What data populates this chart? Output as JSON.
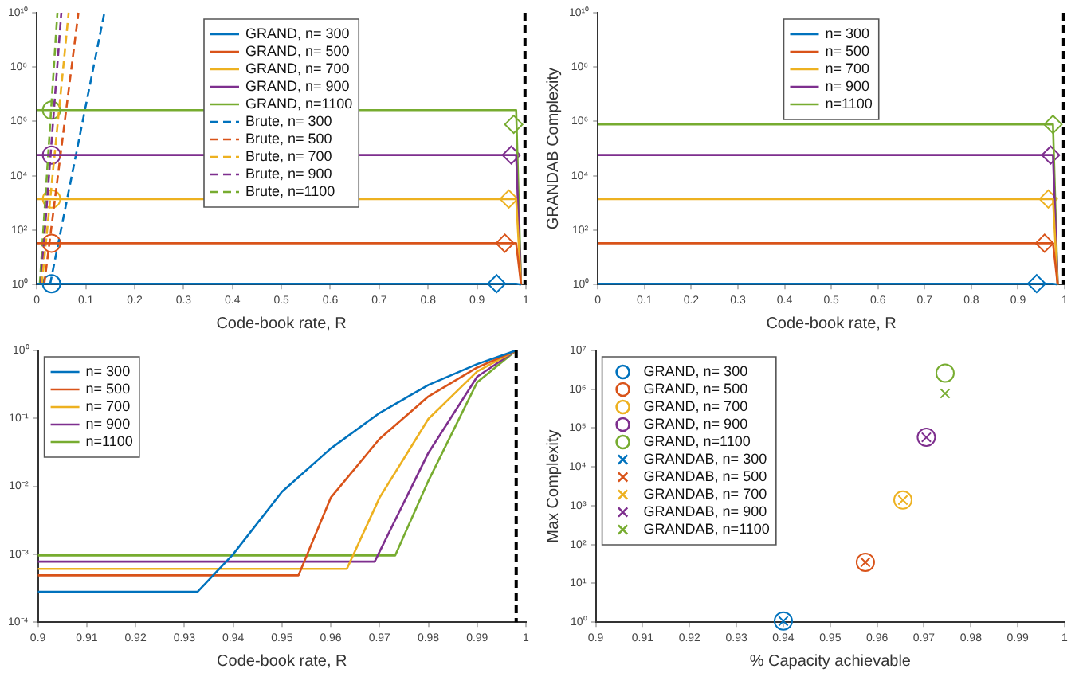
{
  "chart_data": [
    {
      "type": "line",
      "xlabel": "Code-book rate, R",
      "log": "y",
      "grid": false,
      "legend": "top",
      "xlim": [
        0,
        1
      ],
      "xticks": [
        0,
        0.1,
        0.2,
        0.3,
        0.4,
        0.5,
        0.6,
        0.7,
        0.8,
        0.9,
        1
      ],
      "ylim": [
        1,
        10000000000
      ],
      "yticks": [
        {
          "value": 1,
          "label": "10⁰"
        },
        {
          "value": 100,
          "label": "10²"
        },
        {
          "value": 10000,
          "label": "10⁴"
        },
        {
          "value": 1000000,
          "label": "10⁶"
        },
        {
          "value": 100000000,
          "label": "10⁸"
        },
        {
          "value": 10000000000,
          "label": "10¹⁰"
        }
      ],
      "ref_lines": [
        {
          "axis": "x",
          "value": 0.998,
          "color": "#000000",
          "line_style": "dashed"
        }
      ],
      "series": [
        {
          "name": "GRAND, n= 300",
          "color": "#0072bd",
          "x": [
            0,
            0.98,
            0.99
          ],
          "values": [
            1.07,
            1.07,
            1
          ]
        },
        {
          "name": "GRAND, n= 500",
          "color": "#d95319",
          "x": [
            0,
            0.98,
            0.99
          ],
          "values": [
            33,
            33,
            1
          ]
        },
        {
          "name": "GRAND, n= 700",
          "color": "#edb120",
          "x": [
            0,
            0.98,
            0.99
          ],
          "values": [
            1400,
            1400,
            1
          ]
        },
        {
          "name": "GRAND, n= 900",
          "color": "#7e2f8e",
          "x": [
            0,
            0.98,
            0.99
          ],
          "values": [
            58000,
            58000,
            1
          ]
        },
        {
          "name": "GRAND, n=1100",
          "color": "#77ac30",
          "x": [
            0,
            0.98,
            0.99
          ],
          "values": [
            2600000,
            2600000,
            1
          ]
        },
        {
          "name": "Brute, n= 300",
          "color": "#0072bd",
          "line_style": "dashed",
          "x": [
            0.027,
            0.138
          ],
          "values": [
            1,
            10000000000
          ]
        },
        {
          "name": "Brute, n= 500",
          "color": "#d95319",
          "line_style": "dashed",
          "x": [
            0.015,
            0.085
          ],
          "values": [
            1,
            10000000000
          ]
        },
        {
          "name": "Brute, n= 700",
          "color": "#edb120",
          "line_style": "dashed",
          "x": [
            0.01,
            0.065
          ],
          "values": [
            1,
            10000000000
          ]
        },
        {
          "name": "Brute, n= 900",
          "color": "#7e2f8e",
          "line_style": "dashed",
          "x": [
            0.008,
            0.05
          ],
          "values": [
            1,
            10000000000
          ]
        },
        {
          "name": "Brute, n=1100",
          "color": "#77ac30",
          "line_style": "dashed",
          "x": [
            0.006,
            0.042
          ],
          "values": [
            1,
            10000000000
          ]
        },
        {
          "type": "scatter",
          "marker": "circle",
          "colors": [
            "#0072bd",
            "#d95319",
            "#edb120",
            "#7e2f8e",
            "#77ac30"
          ],
          "x": [
            0.03,
            0.03,
            0.03,
            0.03,
            0.03
          ],
          "values": [
            1.07,
            33,
            1400,
            58000,
            2600000
          ]
        },
        {
          "type": "scatter",
          "marker": "diamond",
          "colors": [
            "#0072bd",
            "#d95319",
            "#edb120",
            "#7e2f8e",
            "#77ac30"
          ],
          "x": [
            0.94,
            0.957,
            0.965,
            0.97,
            0.975
          ],
          "values": [
            1.07,
            33,
            1400,
            58000,
            780000
          ]
        }
      ]
    },
    {
      "type": "line",
      "xlabel": "Code-book rate, R",
      "ylabel": "GRANDAB Complexity",
      "log": "y",
      "grid": false,
      "legend": "top",
      "xlim": [
        0,
        1
      ],
      "xticks": [
        0,
        0.1,
        0.2,
        0.3,
        0.4,
        0.5,
        0.6,
        0.7,
        0.8,
        0.9,
        1
      ],
      "ylim": [
        1,
        10000000000
      ],
      "yticks": [
        {
          "value": 1,
          "label": "10⁰"
        },
        {
          "value": 100,
          "label": "10²"
        },
        {
          "value": 10000,
          "label": "10⁴"
        },
        {
          "value": 1000000,
          "label": "10⁶"
        },
        {
          "value": 100000000,
          "label": "10⁸"
        },
        {
          "value": 10000000000,
          "label": "10¹⁰"
        }
      ],
      "ref_lines": [
        {
          "axis": "x",
          "value": 0.998,
          "color": "#000000",
          "line_style": "dashed"
        }
      ],
      "series": [
        {
          "name": "n= 300",
          "color": "#0072bd",
          "x": [
            0,
            0.975,
            0.985
          ],
          "values": [
            1.07,
            1.07,
            1
          ]
        },
        {
          "name": "n= 500",
          "color": "#d95319",
          "x": [
            0,
            0.975,
            0.985
          ],
          "values": [
            33,
            33,
            1
          ]
        },
        {
          "name": "n= 700",
          "color": "#edb120",
          "x": [
            0,
            0.975,
            0.985
          ],
          "values": [
            1400,
            1400,
            1
          ]
        },
        {
          "name": "n= 900",
          "color": "#7e2f8e",
          "x": [
            0,
            0.975,
            0.985
          ],
          "values": [
            58000,
            58000,
            1
          ]
        },
        {
          "name": "n=1100",
          "color": "#77ac30",
          "x": [
            0,
            0.975,
            0.985
          ],
          "values": [
            780000,
            780000,
            1
          ]
        },
        {
          "type": "scatter",
          "marker": "diamond",
          "colors": [
            "#0072bd",
            "#d95319",
            "#edb120",
            "#7e2f8e",
            "#77ac30"
          ],
          "x": [
            0.94,
            0.957,
            0.965,
            0.97,
            0.975
          ],
          "values": [
            1.07,
            33,
            1400,
            58000,
            780000
          ]
        }
      ]
    },
    {
      "type": "line",
      "xlabel": "Code-book rate, R",
      "log": "y",
      "grid": false,
      "legend": "top left",
      "xlim": [
        0.9,
        1
      ],
      "xticks": [
        0.9,
        0.91,
        0.92,
        0.93,
        0.94,
        0.95,
        0.96,
        0.97,
        0.98,
        0.99,
        1
      ],
      "ylim": [
        0.0001,
        1
      ],
      "yticks": [
        {
          "value": 0.0001,
          "label": "10⁻⁴"
        },
        {
          "value": 0.001,
          "label": "10⁻³"
        },
        {
          "value": 0.01,
          "label": "10⁻²"
        },
        {
          "value": 0.1,
          "label": "10⁻¹"
        },
        {
          "value": 1,
          "label": "10⁰"
        }
      ],
      "ref_lines": [
        {
          "axis": "x",
          "value": 0.998,
          "color": "#000000",
          "line_style": "dashed"
        }
      ],
      "series": [
        {
          "name": "n= 300",
          "color": "#0072bd",
          "x": [
            0.9,
            0.9327,
            0.94,
            0.95,
            0.96,
            0.97,
            0.98,
            0.99,
            0.998
          ],
          "values": [
            0.00028,
            0.00028,
            0.001,
            0.0083,
            0.036,
            0.12,
            0.31,
            0.63,
            1
          ]
        },
        {
          "name": "n= 500",
          "color": "#d95319",
          "x": [
            0.9,
            0.9534,
            0.96,
            0.97,
            0.98,
            0.99,
            0.998
          ],
          "values": [
            0.00049,
            0.00049,
            0.0068,
            0.05,
            0.21,
            0.56,
            1
          ]
        },
        {
          "name": "n= 700",
          "color": "#edb120",
          "x": [
            0.9,
            0.9633,
            0.97,
            0.98,
            0.99,
            0.998
          ],
          "values": [
            0.00061,
            0.00061,
            0.0068,
            0.098,
            0.49,
            1
          ]
        },
        {
          "name": "n= 900",
          "color": "#7e2f8e",
          "x": [
            0.9,
            0.969,
            0.98,
            0.99,
            0.998
          ],
          "values": [
            0.00078,
            0.00078,
            0.031,
            0.41,
            1
          ]
        },
        {
          "name": "n=1100",
          "color": "#77ac30",
          "x": [
            0.9,
            0.9732,
            0.98,
            0.99,
            0.998
          ],
          "values": [
            0.00096,
            0.00096,
            0.012,
            0.34,
            1
          ]
        }
      ]
    },
    {
      "type": "scatter",
      "xlabel": "% Capacity achievable",
      "ylabel": "Max Complexity",
      "log": "y",
      "grid": false,
      "legend": "top left",
      "xlim": [
        0.9,
        1
      ],
      "xticks": [
        0.9,
        0.91,
        0.92,
        0.93,
        0.94,
        0.95,
        0.96,
        0.97,
        0.98,
        0.99,
        1
      ],
      "ylim": [
        1,
        10000000
      ],
      "yticks": [
        {
          "value": 1,
          "label": "10⁰"
        },
        {
          "value": 10,
          "label": "10¹"
        },
        {
          "value": 100,
          "label": "10²"
        },
        {
          "value": 1000,
          "label": "10³"
        },
        {
          "value": 10000,
          "label": "10⁴"
        },
        {
          "value": 100000,
          "label": "10⁵"
        },
        {
          "value": 1000000,
          "label": "10⁶"
        },
        {
          "value": 10000000,
          "label": "10⁷"
        }
      ],
      "series": [
        {
          "name": "GRAND, n= 300",
          "color": "#0072bd",
          "marker": "circle",
          "x": [
            0.94
          ],
          "values": [
            1.07
          ]
        },
        {
          "name": "GRAND, n= 500",
          "color": "#d95319",
          "marker": "circle",
          "x": [
            0.9575
          ],
          "values": [
            35
          ]
        },
        {
          "name": "GRAND, n= 700",
          "color": "#edb120",
          "marker": "circle",
          "x": [
            0.9655
          ],
          "values": [
            1400
          ]
        },
        {
          "name": "GRAND, n= 900",
          "color": "#7e2f8e",
          "marker": "circle",
          "x": [
            0.9705
          ],
          "values": [
            58000
          ]
        },
        {
          "name": "GRAND, n=1100",
          "color": "#77ac30",
          "marker": "circle",
          "x": [
            0.9745
          ],
          "values": [
            2600000
          ]
        },
        {
          "name": "GRANDAB, n= 300",
          "color": "#0072bd",
          "marker": "cross",
          "x": [
            0.94
          ],
          "values": [
            1.07
          ]
        },
        {
          "name": "GRANDAB, n= 500",
          "color": "#d95319",
          "marker": "cross",
          "x": [
            0.9575
          ],
          "values": [
            35
          ]
        },
        {
          "name": "GRANDAB, n= 700",
          "color": "#edb120",
          "marker": "cross",
          "x": [
            0.9655
          ],
          "values": [
            1400
          ]
        },
        {
          "name": "GRANDAB, n= 900",
          "color": "#7e2f8e",
          "marker": "cross",
          "x": [
            0.9705
          ],
          "values": [
            58000
          ]
        },
        {
          "name": "GRANDAB, n=1100",
          "color": "#77ac30",
          "marker": "cross",
          "x": [
            0.9745
          ],
          "values": [
            780000
          ]
        }
      ]
    }
  ]
}
